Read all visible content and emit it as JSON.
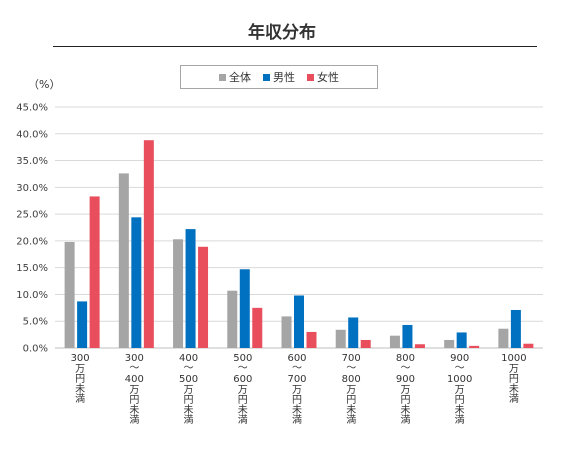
{
  "chart_data": {
    "type": "bar",
    "title": "年収分布",
    "unit_label": "（%）",
    "ylim": [
      0,
      45
    ],
    "y_ticks": [
      "0.0%",
      "5.0%",
      "10.0%",
      "15.0%",
      "20.0%",
      "25.0%",
      "30.0%",
      "35.0%",
      "40.0%",
      "45.0%"
    ],
    "grid": true,
    "legend_position": "top",
    "categories": [
      [
        "300",
        "万円未満"
      ],
      [
        "300",
        "～",
        "400",
        "万円未満"
      ],
      [
        "400",
        "～",
        "500",
        "万円未満"
      ],
      [
        "500",
        "～",
        "600",
        "万円未満"
      ],
      [
        "600",
        "～",
        "700",
        "万円未満"
      ],
      [
        "700",
        "～",
        "800",
        "万円未満"
      ],
      [
        "800",
        "～",
        "900",
        "万円未満"
      ],
      [
        "900",
        "～",
        "1000",
        "万円未満"
      ],
      [
        "1000",
        "万円未満"
      ]
    ],
    "series": [
      {
        "name": "全体",
        "color": "#a5a5a5",
        "values": [
          19.8,
          32.6,
          20.3,
          10.7,
          5.9,
          3.4,
          2.3,
          1.5,
          3.6
        ]
      },
      {
        "name": "男性",
        "color": "#0070c0",
        "values": [
          8.7,
          24.4,
          22.2,
          14.7,
          9.8,
          5.7,
          4.3,
          2.9,
          7.1
        ]
      },
      {
        "name": "女性",
        "color": "#e84e5c",
        "values": [
          28.3,
          38.8,
          18.9,
          7.5,
          3.0,
          1.5,
          0.7,
          0.4,
          0.8
        ]
      }
    ]
  }
}
